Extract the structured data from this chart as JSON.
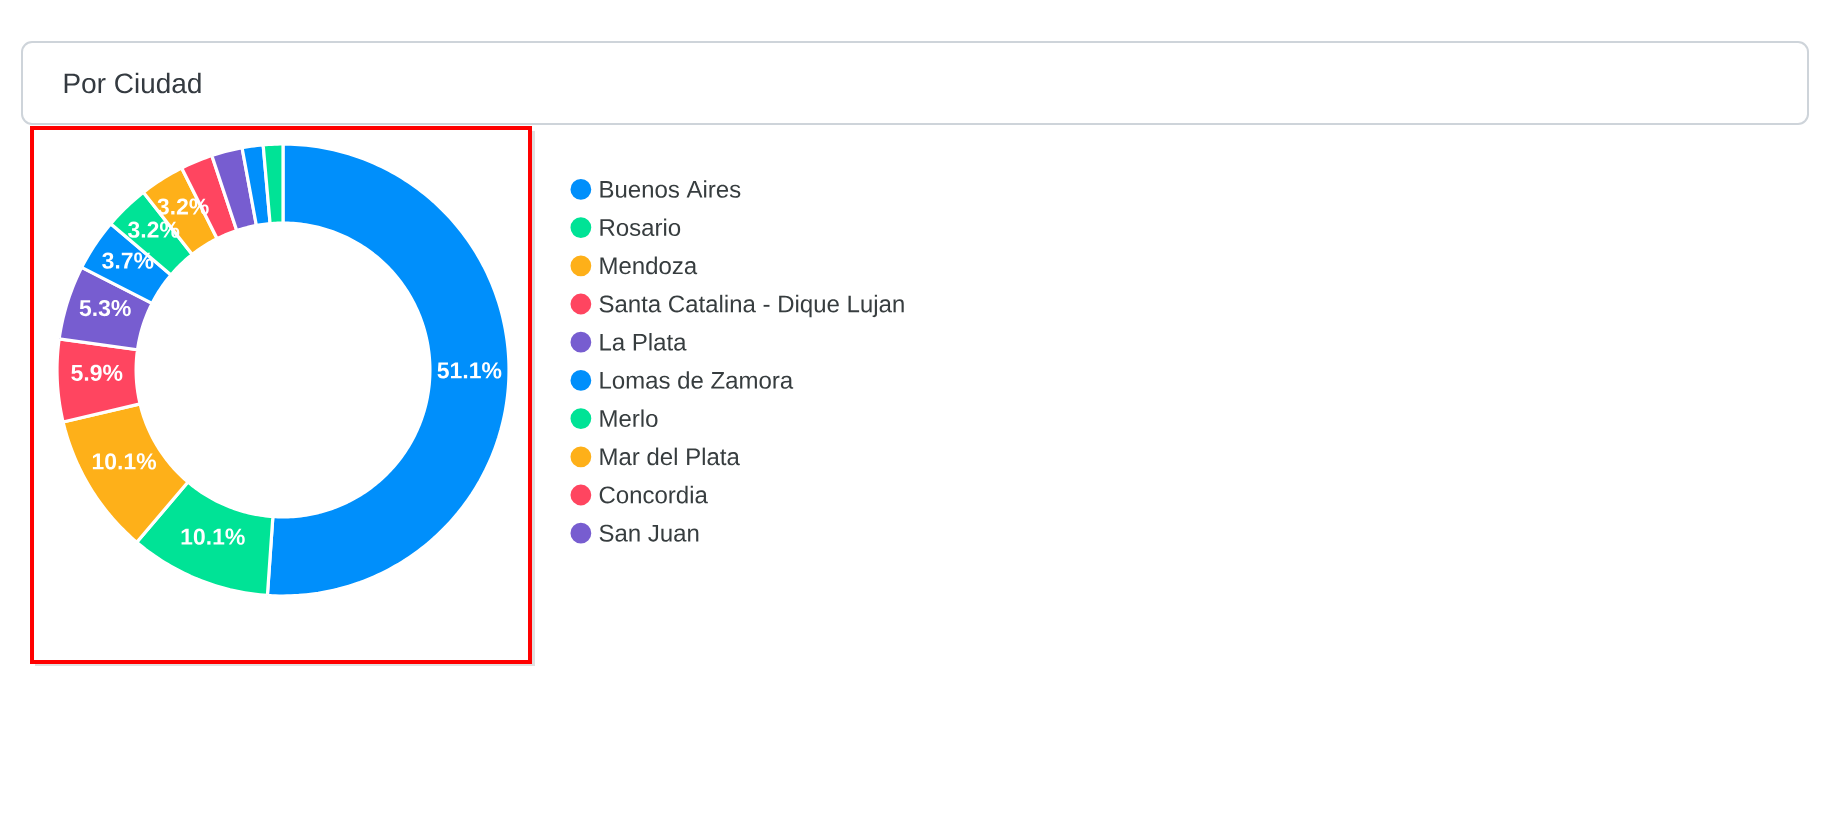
{
  "chart_data": {
    "type": "donut",
    "title": "Por Ciudad",
    "categories": [
      "Buenos Aires",
      "Rosario",
      "Mendoza",
      "Santa Catalina - Dique Lujan",
      "La Plata",
      "Lomas de Zamora",
      "Merlo",
      "Mar del Plata",
      "Concordia",
      "San Juan",
      null,
      null
    ],
    "values": [
      51.1,
      10.1,
      10.1,
      5.9,
      5.3,
      3.7,
      3.2,
      3.2,
      2.3,
      2.2,
      1.5,
      1.4
    ],
    "colors": [
      "#008ffb",
      "#00e396",
      "#feb019",
      "#ff4560",
      "#775dd0",
      "#008ffb",
      "#00e396",
      "#feb019",
      "#ff4560",
      "#775dd0",
      "#008ffb",
      "#00e396"
    ],
    "value_labels": [
      "51.1%",
      "10.1%",
      "10.1%",
      "5.9%",
      "5.3%",
      "3.7%",
      "3.2%",
      "3.2%",
      null,
      null,
      null,
      null
    ],
    "legend": "right"
  }
}
